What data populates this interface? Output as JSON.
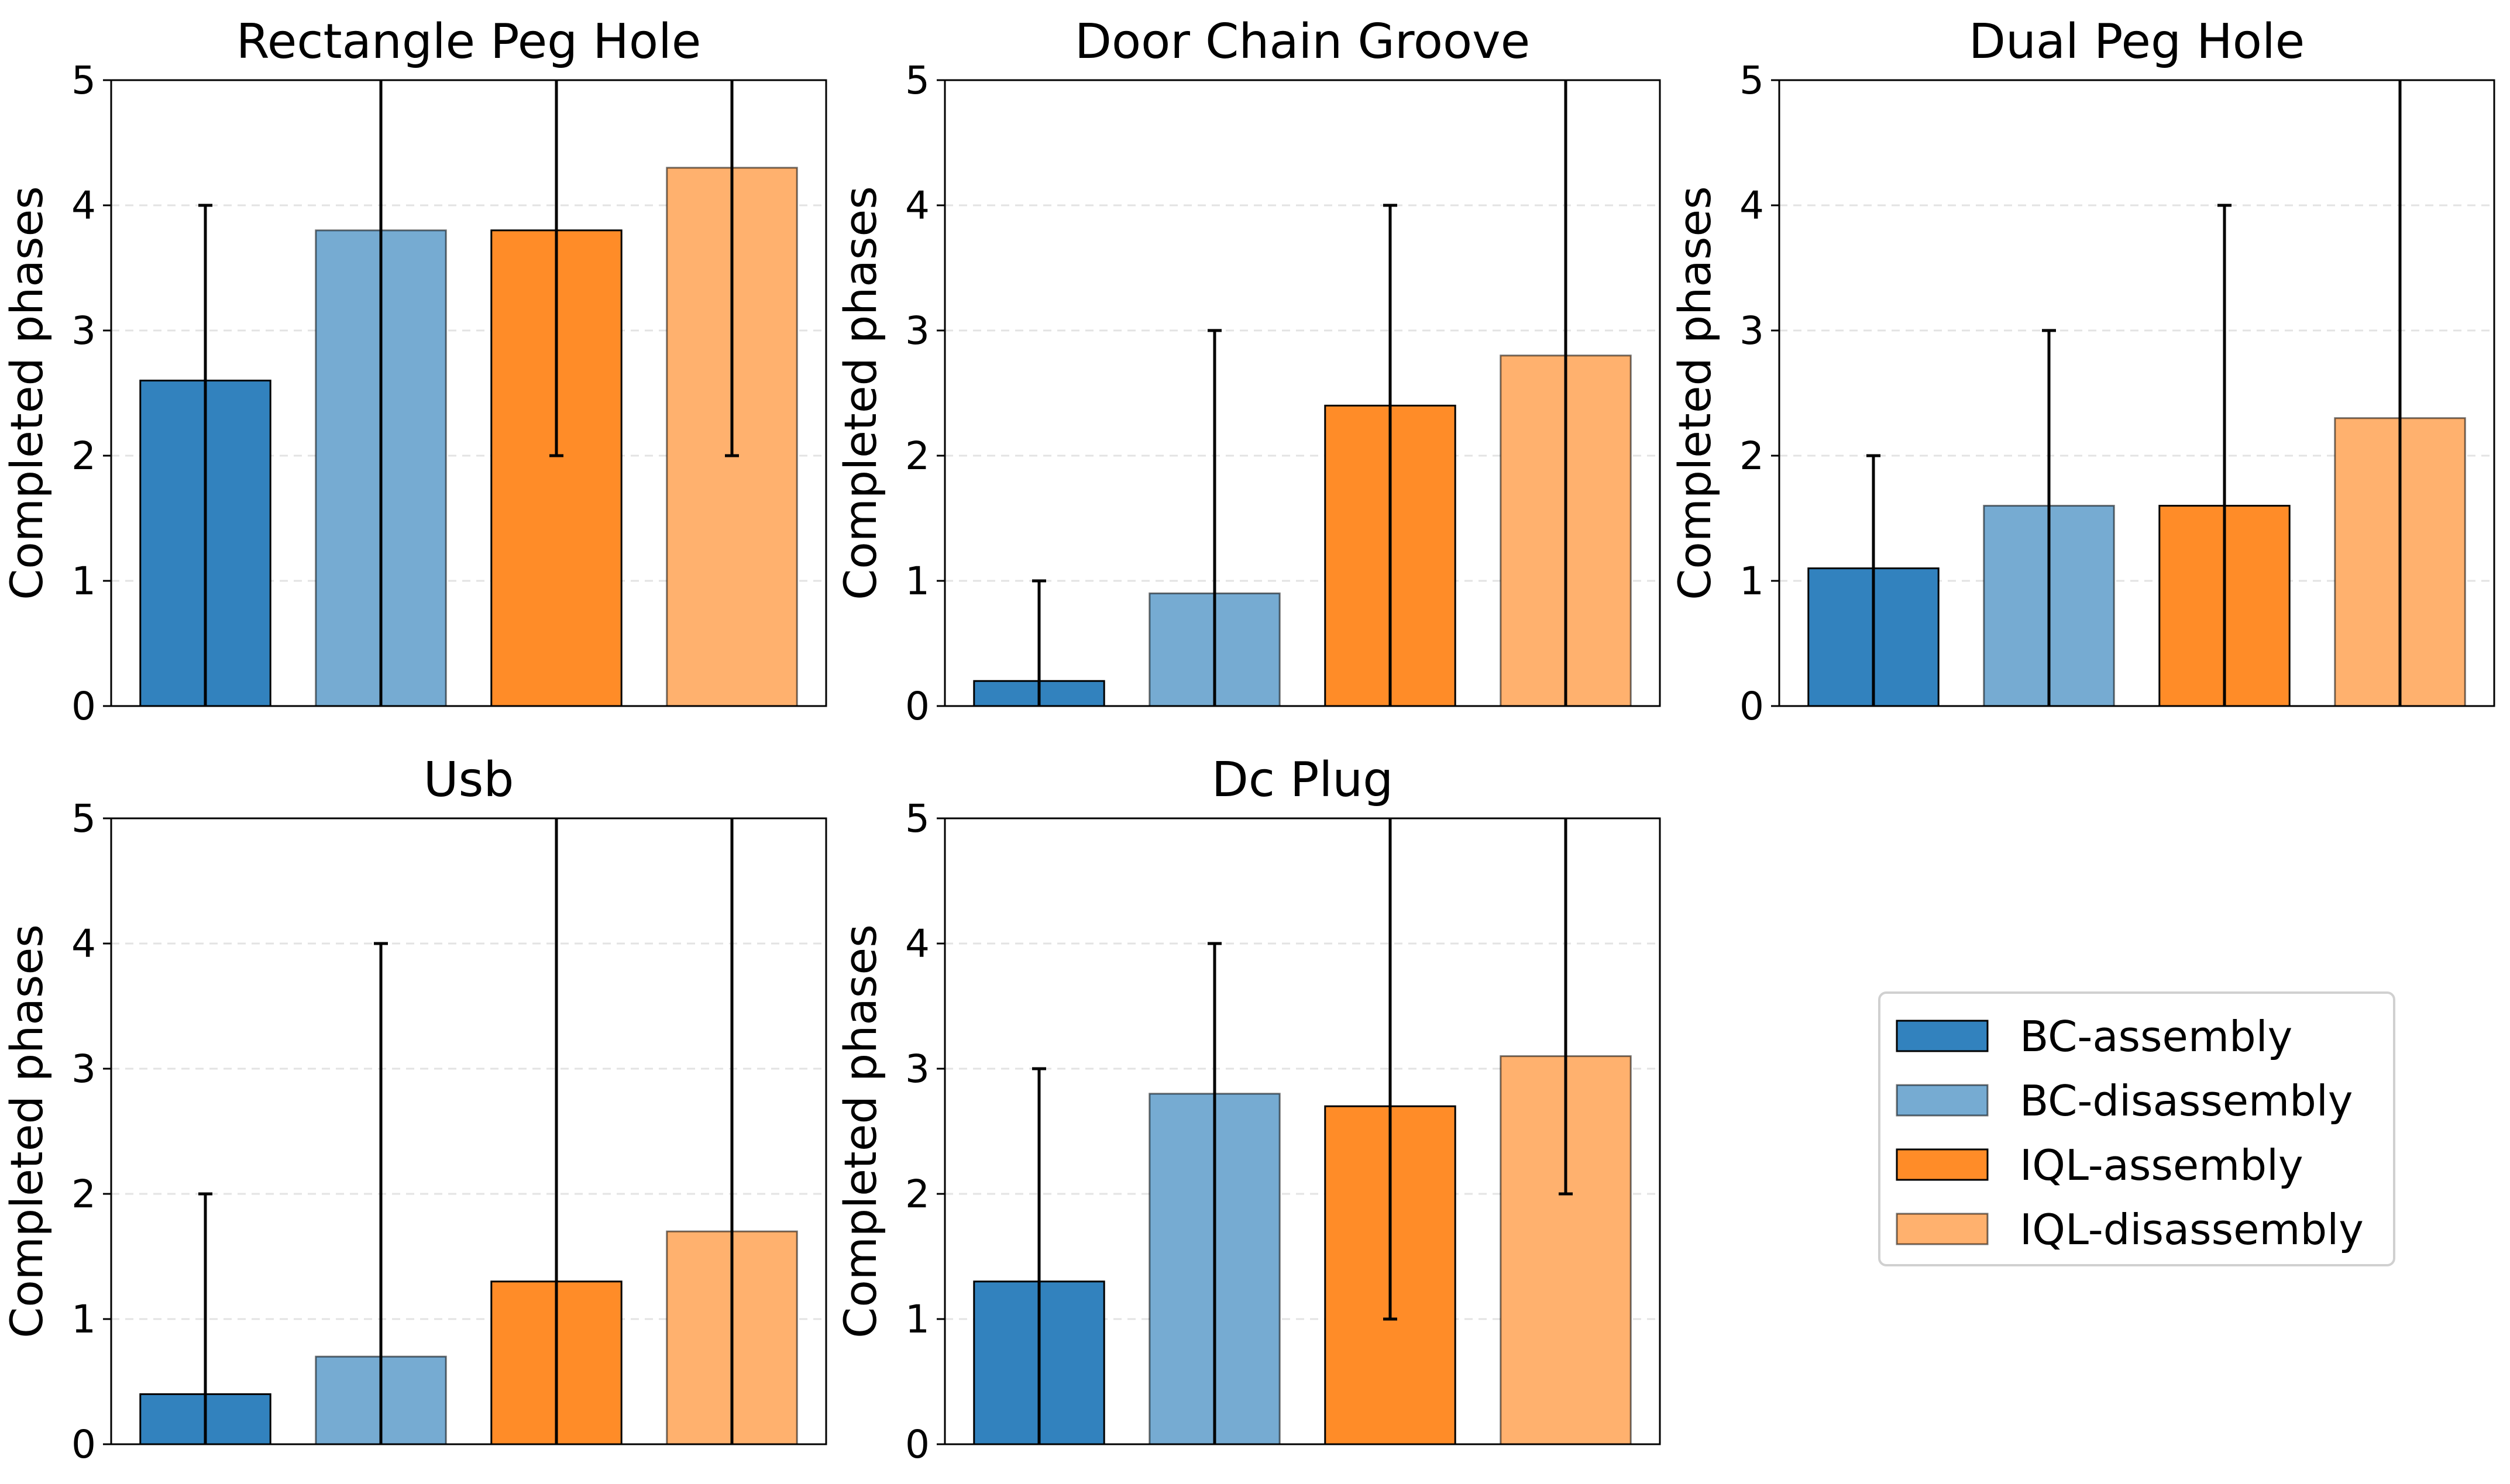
{
  "chart_data": {
    "type": "bar",
    "ylabel": "Completed phases",
    "ylim": [
      0,
      5
    ],
    "yticks": [
      "0",
      "1",
      "2",
      "3",
      "4",
      "5"
    ],
    "grid": "horizontal dashed",
    "legend_position": "lower-right",
    "series": [
      {
        "name": "BC-assembly",
        "color": "#3282be"
      },
      {
        "name": "BC-disassembly",
        "color": "#76abd2"
      },
      {
        "name": "IQL-assembly",
        "color": "#ff8c28"
      },
      {
        "name": "IQL-disassembly",
        "color": "#ffb16e"
      }
    ],
    "panels": [
      {
        "title": "Rectangle Peg Hole",
        "values": [
          2.6,
          3.8,
          3.8,
          4.3
        ],
        "errors": [
          [
            0,
            4
          ],
          [
            0,
            5
          ],
          [
            2,
            5
          ],
          [
            2,
            5
          ]
        ]
      },
      {
        "title": "Door Chain Groove",
        "values": [
          0.2,
          0.9,
          2.4,
          2.8
        ],
        "errors": [
          [
            0,
            1
          ],
          [
            0,
            3
          ],
          [
            0,
            4
          ],
          [
            0,
            5
          ]
        ]
      },
      {
        "title": "Dual Peg Hole",
        "values": [
          1.1,
          1.6,
          1.6,
          2.3
        ],
        "errors": [
          [
            0,
            2
          ],
          [
            0,
            3
          ],
          [
            0,
            4
          ],
          [
            0,
            5
          ]
        ]
      },
      {
        "title": "Usb",
        "values": [
          0.4,
          0.7,
          1.3,
          1.7
        ],
        "errors": [
          [
            0,
            2
          ],
          [
            0,
            4
          ],
          [
            0,
            5
          ],
          [
            0,
            5
          ]
        ]
      },
      {
        "title": "Dc Plug",
        "values": [
          1.3,
          2.8,
          2.7,
          3.1
        ],
        "errors": [
          [
            0,
            3
          ],
          [
            0,
            4
          ],
          [
            1,
            5
          ],
          [
            2,
            5
          ]
        ]
      }
    ]
  }
}
